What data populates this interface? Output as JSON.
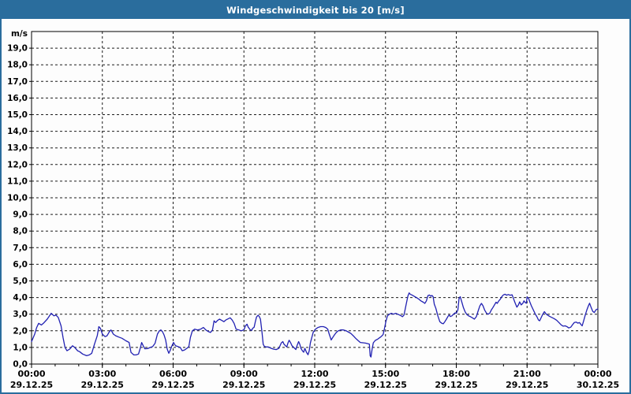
{
  "window": {
    "title": "Windgeschwindigkeit bis 20 [m/s]"
  },
  "colors": {
    "frame": "#2a6d9d",
    "titlebar_bg": "#2a6d9d",
    "title_text": "#ffffff",
    "background": "#fdfdfd",
    "plot_border": "#000000",
    "grid": "#1c1c1c",
    "line": "#2121b2",
    "label_text": "#000000"
  },
  "chart_data": {
    "type": "line",
    "title": "Windgeschwindigkeit bis 20 [m/s]",
    "ylabel": "m/s",
    "ylim": [
      0,
      20
    ],
    "grid": "dashed",
    "legend": "none",
    "x_max_minutes": 1440,
    "x_minor_tick_minutes": 60,
    "ytick_labels": [
      "0,0",
      "1,0",
      "2,0",
      "3,0",
      "4,0",
      "5,0",
      "6,0",
      "7,0",
      "8,0",
      "9,0",
      "10,0",
      "11,0",
      "12,0",
      "13,0",
      "14,0",
      "15,0",
      "16,0",
      "17,0",
      "18,0",
      "19,0"
    ],
    "xticks": [
      {
        "minutes": 0,
        "time": "00:00",
        "date": "29.12.25"
      },
      {
        "minutes": 180,
        "time": "03:00",
        "date": "29.12.25"
      },
      {
        "minutes": 360,
        "time": "06:00",
        "date": "29.12.25"
      },
      {
        "minutes": 540,
        "time": "09:00",
        "date": "29.12.25"
      },
      {
        "minutes": 720,
        "time": "12:00",
        "date": "29.12.25"
      },
      {
        "minutes": 900,
        "time": "15:00",
        "date": "29.12.25"
      },
      {
        "minutes": 1080,
        "time": "18:00",
        "date": "29.12.25"
      },
      {
        "minutes": 1260,
        "time": "21:00",
        "date": "29.12.25"
      },
      {
        "minutes": 1440,
        "time": "00:00",
        "date": "30.12.25"
      }
    ],
    "series": [
      {
        "name": "Windgeschwindigkeit",
        "color": "#2121b2",
        "points": [
          [
            0,
            1.35
          ],
          [
            8,
            1.8
          ],
          [
            13,
            2.2
          ],
          [
            18,
            2.45
          ],
          [
            25,
            2.35
          ],
          [
            30,
            2.45
          ],
          [
            40,
            2.7
          ],
          [
            50,
            3.05
          ],
          [
            57,
            2.9
          ],
          [
            62,
            2.95
          ],
          [
            68,
            2.8
          ],
          [
            75,
            2.3
          ],
          [
            80,
            1.6
          ],
          [
            85,
            1.0
          ],
          [
            90,
            0.8
          ],
          [
            97,
            0.9
          ],
          [
            104,
            1.1
          ],
          [
            110,
            1.0
          ],
          [
            117,
            0.8
          ],
          [
            122,
            0.75
          ],
          [
            130,
            0.6
          ],
          [
            140,
            0.5
          ],
          [
            147,
            0.55
          ],
          [
            153,
            0.65
          ],
          [
            160,
            1.2
          ],
          [
            167,
            1.7
          ],
          [
            171,
            2.25
          ],
          [
            175,
            2.15
          ],
          [
            180,
            1.8
          ],
          [
            187,
            1.65
          ],
          [
            192,
            1.7
          ],
          [
            198,
            1.95
          ],
          [
            202,
            2.05
          ],
          [
            208,
            1.8
          ],
          [
            214,
            1.7
          ],
          [
            222,
            1.62
          ],
          [
            230,
            1.55
          ],
          [
            240,
            1.4
          ],
          [
            248,
            1.3
          ],
          [
            253,
            0.7
          ],
          [
            260,
            0.55
          ],
          [
            266,
            0.55
          ],
          [
            272,
            0.6
          ],
          [
            277,
            1.0
          ],
          [
            280,
            1.3
          ],
          [
            284,
            1.1
          ],
          [
            288,
            0.92
          ],
          [
            295,
            0.93
          ],
          [
            302,
            1.0
          ],
          [
            308,
            1.05
          ],
          [
            314,
            1.25
          ],
          [
            320,
            1.8
          ],
          [
            325,
            2.0
          ],
          [
            329,
            2.05
          ],
          [
            333,
            1.95
          ],
          [
            337,
            1.75
          ],
          [
            341,
            1.45
          ],
          [
            345,
            0.9
          ],
          [
            349,
            0.65
          ],
          [
            353,
            0.85
          ],
          [
            357,
            1.1
          ],
          [
            361,
            1.3
          ],
          [
            366,
            1.1
          ],
          [
            372,
            1.05
          ],
          [
            378,
            1.0
          ],
          [
            383,
            0.8
          ],
          [
            389,
            0.85
          ],
          [
            395,
            0.95
          ],
          [
            400,
            1.05
          ],
          [
            404,
            1.6
          ],
          [
            409,
            2.0
          ],
          [
            415,
            2.1
          ],
          [
            422,
            2.05
          ],
          [
            430,
            2.1
          ],
          [
            437,
            2.2
          ],
          [
            443,
            2.05
          ],
          [
            450,
            1.95
          ],
          [
            455,
            1.9
          ],
          [
            460,
            2.05
          ],
          [
            464,
            2.6
          ],
          [
            468,
            2.5
          ],
          [
            473,
            2.62
          ],
          [
            478,
            2.7
          ],
          [
            484,
            2.62
          ],
          [
            489,
            2.55
          ],
          [
            494,
            2.65
          ],
          [
            500,
            2.72
          ],
          [
            505,
            2.78
          ],
          [
            510,
            2.65
          ],
          [
            515,
            2.45
          ],
          [
            520,
            2.1
          ],
          [
            527,
            2.05
          ],
          [
            533,
            2.0
          ],
          [
            540,
            2.06
          ],
          [
            544,
            2.3
          ],
          [
            548,
            2.4
          ],
          [
            551,
            2.22
          ],
          [
            556,
            2.06
          ],
          [
            560,
            2.03
          ],
          [
            562,
            2.14
          ],
          [
            566,
            2.22
          ],
          [
            569,
            2.54
          ],
          [
            572,
            2.83
          ],
          [
            576,
            2.94
          ],
          [
            579,
            2.86
          ],
          [
            582,
            2.7
          ],
          [
            586,
            1.9
          ],
          [
            589,
            1.19
          ],
          [
            592,
            1.06
          ],
          [
            596,
            1.03
          ],
          [
            602,
            1.03
          ],
          [
            609,
            0.95
          ],
          [
            615,
            0.9
          ],
          [
            622,
            0.87
          ],
          [
            629,
            0.95
          ],
          [
            635,
            1.27
          ],
          [
            639,
            1.35
          ],
          [
            642,
            1.19
          ],
          [
            649,
            1.03
          ],
          [
            652,
            1.27
          ],
          [
            655,
            1.43
          ],
          [
            659,
            1.27
          ],
          [
            662,
            1.11
          ],
          [
            669,
            0.95
          ],
          [
            672,
            0.87
          ],
          [
            675,
            1.11
          ],
          [
            679,
            1.35
          ],
          [
            682,
            1.19
          ],
          [
            685,
            0.95
          ],
          [
            689,
            0.79
          ],
          [
            692,
            0.71
          ],
          [
            695,
            0.95
          ],
          [
            699,
            0.71
          ],
          [
            703,
            0.56
          ],
          [
            706,
            0.79
          ],
          [
            709,
            1.27
          ],
          [
            716,
            1.9
          ],
          [
            722,
            2.1
          ],
          [
            728,
            2.2
          ],
          [
            735,
            2.25
          ],
          [
            742,
            2.25
          ],
          [
            748,
            2.2
          ],
          [
            753,
            2.1
          ],
          [
            757,
            1.8
          ],
          [
            762,
            1.45
          ],
          [
            766,
            1.6
          ],
          [
            770,
            1.75
          ],
          [
            775,
            1.9
          ],
          [
            780,
            2.0
          ],
          [
            786,
            2.05
          ],
          [
            793,
            2.05
          ],
          [
            800,
            2.0
          ],
          [
            806,
            1.92
          ],
          [
            812,
            1.84
          ],
          [
            818,
            1.7
          ],
          [
            824,
            1.55
          ],
          [
            830,
            1.42
          ],
          [
            836,
            1.3
          ],
          [
            843,
            1.28
          ],
          [
            849,
            1.26
          ],
          [
            856,
            1.22
          ],
          [
            859,
            1.2
          ],
          [
            861,
            0.5
          ],
          [
            863,
            0.42
          ],
          [
            866,
            0.9
          ],
          [
            869,
            1.28
          ],
          [
            874,
            1.42
          ],
          [
            880,
            1.5
          ],
          [
            886,
            1.6
          ],
          [
            890,
            1.68
          ],
          [
            894,
            1.78
          ],
          [
            897,
            2.1
          ],
          [
            901,
            2.55
          ],
          [
            905,
            2.9
          ],
          [
            910,
            3.0
          ],
          [
            915,
            3.05
          ],
          [
            920,
            3.0
          ],
          [
            926,
            3.05
          ],
          [
            931,
            3.0
          ],
          [
            936,
            2.95
          ],
          [
            940,
            2.9
          ],
          [
            943,
            2.85
          ],
          [
            947,
            2.95
          ],
          [
            950,
            3.3
          ],
          [
            953,
            3.65
          ],
          [
            957,
            4.1
          ],
          [
            960,
            4.28
          ],
          [
            963,
            4.2
          ],
          [
            968,
            4.14
          ],
          [
            974,
            4.06
          ],
          [
            980,
            3.98
          ],
          [
            985,
            3.9
          ],
          [
            990,
            3.8
          ],
          [
            996,
            3.72
          ],
          [
            1000,
            3.65
          ],
          [
            1004,
            3.8
          ],
          [
            1008,
            4.12
          ],
          [
            1012,
            4.15
          ],
          [
            1015,
            4.08
          ],
          [
            1018,
            4.13
          ],
          [
            1021,
            4.05
          ],
          [
            1024,
            3.6
          ],
          [
            1028,
            3.35
          ],
          [
            1033,
            2.9
          ],
          [
            1038,
            2.55
          ],
          [
            1043,
            2.45
          ],
          [
            1047,
            2.42
          ],
          [
            1051,
            2.55
          ],
          [
            1055,
            2.7
          ],
          [
            1059,
            2.87
          ],
          [
            1062,
            2.95
          ],
          [
            1065,
            2.86
          ],
          [
            1069,
            2.9
          ],
          [
            1073,
            3.0
          ],
          [
            1077,
            3.08
          ],
          [
            1080,
            3.05
          ],
          [
            1084,
            3.25
          ],
          [
            1087,
            3.95
          ],
          [
            1090,
            4.05
          ],
          [
            1094,
            3.73
          ],
          [
            1098,
            3.4
          ],
          [
            1102,
            3.16
          ],
          [
            1106,
            3.0
          ],
          [
            1111,
            2.9
          ],
          [
            1116,
            2.85
          ],
          [
            1121,
            2.78
          ],
          [
            1126,
            2.7
          ],
          [
            1131,
            2.85
          ],
          [
            1135,
            3.15
          ],
          [
            1140,
            3.5
          ],
          [
            1144,
            3.65
          ],
          [
            1148,
            3.5
          ],
          [
            1152,
            3.25
          ],
          [
            1157,
            3.05
          ],
          [
            1161,
            3.0
          ],
          [
            1165,
            3.06
          ],
          [
            1169,
            3.25
          ],
          [
            1173,
            3.4
          ],
          [
            1177,
            3.56
          ],
          [
            1181,
            3.72
          ],
          [
            1184,
            3.65
          ],
          [
            1188,
            3.8
          ],
          [
            1192,
            3.9
          ],
          [
            1196,
            4.06
          ],
          [
            1200,
            4.16
          ],
          [
            1204,
            4.2
          ],
          [
            1208,
            4.14
          ],
          [
            1212,
            4.18
          ],
          [
            1217,
            4.14
          ],
          [
            1222,
            4.16
          ],
          [
            1226,
            3.9
          ],
          [
            1230,
            3.65
          ],
          [
            1234,
            3.42
          ],
          [
            1238,
            3.56
          ],
          [
            1241,
            3.74
          ],
          [
            1245,
            3.56
          ],
          [
            1249,
            3.65
          ],
          [
            1252,
            3.8
          ],
          [
            1255,
            3.7
          ],
          [
            1258,
            3.66
          ],
          [
            1260,
            4.04
          ],
          [
            1264,
            3.95
          ],
          [
            1267,
            3.74
          ],
          [
            1271,
            3.5
          ],
          [
            1276,
            3.25
          ],
          [
            1281,
            3.0
          ],
          [
            1285,
            2.85
          ],
          [
            1289,
            2.65
          ],
          [
            1292,
            2.6
          ],
          [
            1296,
            2.8
          ],
          [
            1300,
            3.0
          ],
          [
            1304,
            3.15
          ],
          [
            1308,
            3.02
          ],
          [
            1312,
            2.95
          ],
          [
            1317,
            2.87
          ],
          [
            1323,
            2.8
          ],
          [
            1329,
            2.73
          ],
          [
            1335,
            2.64
          ],
          [
            1341,
            2.5
          ],
          [
            1347,
            2.35
          ],
          [
            1352,
            2.28
          ],
          [
            1357,
            2.3
          ],
          [
            1362,
            2.24
          ],
          [
            1366,
            2.17
          ],
          [
            1371,
            2.22
          ],
          [
            1376,
            2.38
          ],
          [
            1380,
            2.5
          ],
          [
            1385,
            2.52
          ],
          [
            1389,
            2.46
          ],
          [
            1393,
            2.5
          ],
          [
            1397,
            2.38
          ],
          [
            1400,
            2.3
          ],
          [
            1404,
            2.6
          ],
          [
            1408,
            2.95
          ],
          [
            1412,
            3.25
          ],
          [
            1416,
            3.5
          ],
          [
            1419,
            3.66
          ],
          [
            1423,
            3.4
          ],
          [
            1427,
            3.17
          ],
          [
            1431,
            3.1
          ],
          [
            1435,
            3.26
          ],
          [
            1440,
            3.32
          ]
        ]
      }
    ]
  }
}
